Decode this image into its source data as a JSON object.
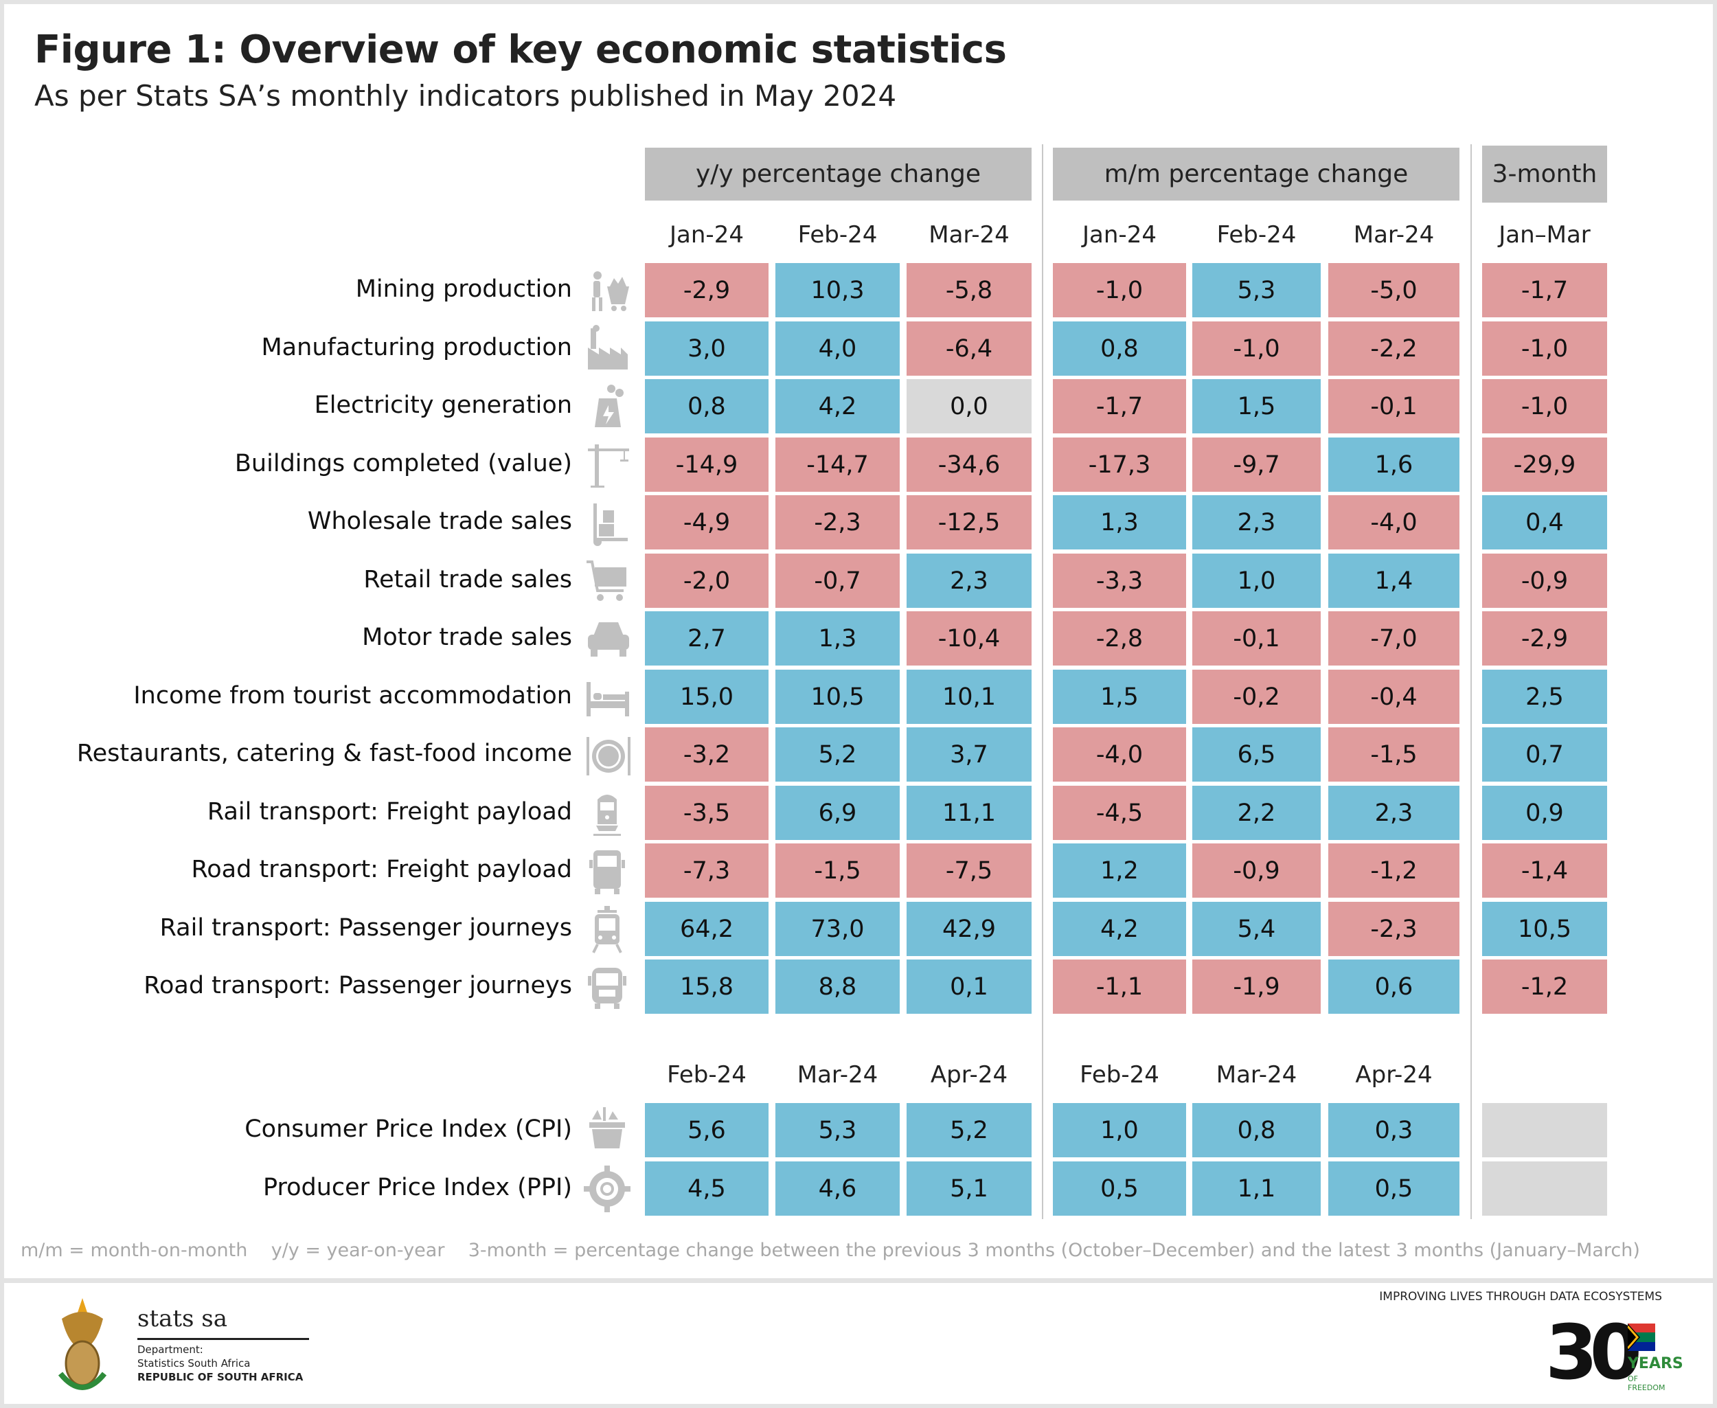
{
  "title": "Figure 1: Overview of key economic statistics",
  "subtitle": "As per Stats SA’s monthly indicators published in May 2024",
  "groups": {
    "yy": "y/y percentage change",
    "mm": "m/m percentage change",
    "three_month": "3-month"
  },
  "colors": {
    "positive": "#76bfd8",
    "negative": "#e09c9d",
    "zero": "#d9d9d9",
    "header": "#bfbfbf"
  },
  "chart_data": {
    "type": "table",
    "title": "Figure 1: Overview of key economic statistics",
    "subtitle": "As per Stats SA’s monthly indicators published in May 2024",
    "section1": {
      "yy_columns": [
        "Jan-24",
        "Feb-24",
        "Mar-24"
      ],
      "mm_columns": [
        "Jan-24",
        "Feb-24",
        "Mar-24"
      ],
      "three_month_column": "Jan–Mar",
      "rows": [
        {
          "label": "Mining production",
          "icon": "miner-cart-icon",
          "yy": [
            "-2,9",
            "10,3",
            "-5,8"
          ],
          "mm": [
            "-1,0",
            "5,3",
            "-5,0"
          ],
          "three_month": "-1,7"
        },
        {
          "label": "Manufacturing production",
          "icon": "factory-icon",
          "yy": [
            "3,0",
            "4,0",
            "-6,4"
          ],
          "mm": [
            "0,8",
            "-1,0",
            "-2,2"
          ],
          "three_month": "-1,0"
        },
        {
          "label": "Electricity generation",
          "icon": "power-plant-icon",
          "yy": [
            "0,8",
            "4,2",
            "0,0"
          ],
          "mm": [
            "-1,7",
            "1,5",
            "-0,1"
          ],
          "three_month": "-1,0"
        },
        {
          "label": "Buildings completed (value)",
          "icon": "crane-icon",
          "yy": [
            "-14,9",
            "-14,7",
            "-34,6"
          ],
          "mm": [
            "-17,3",
            "-9,7",
            "1,6"
          ],
          "three_month": "-29,9"
        },
        {
          "label": "Wholesale trade sales",
          "icon": "hand-truck-icon",
          "yy": [
            "-4,9",
            "-2,3",
            "-12,5"
          ],
          "mm": [
            "1,3",
            "2,3",
            "-4,0"
          ],
          "three_month": "0,4"
        },
        {
          "label": "Retail trade sales",
          "icon": "shopping-cart-icon",
          "yy": [
            "-2,0",
            "-0,7",
            "2,3"
          ],
          "mm": [
            "-3,3",
            "1,0",
            "1,4"
          ],
          "three_month": "-0,9"
        },
        {
          "label": "Motor trade sales",
          "icon": "car-icon",
          "yy": [
            "2,7",
            "1,3",
            "-10,4"
          ],
          "mm": [
            "-2,8",
            "-0,1",
            "-7,0"
          ],
          "three_month": "-2,9"
        },
        {
          "label": "Income from tourist accommodation",
          "icon": "bed-icon",
          "yy": [
            "15,0",
            "10,5",
            "10,1"
          ],
          "mm": [
            "1,5",
            "-0,2",
            "-0,4"
          ],
          "three_month": "2,5"
        },
        {
          "label": "Restaurants, catering & fast-food income",
          "icon": "plate-cutlery-icon",
          "yy": [
            "-3,2",
            "5,2",
            "3,7"
          ],
          "mm": [
            "-4,0",
            "6,5",
            "-1,5"
          ],
          "three_month": "0,7"
        },
        {
          "label": "Rail transport: Freight payload",
          "icon": "locomotive-icon",
          "yy": [
            "-3,5",
            "6,9",
            "11,1"
          ],
          "mm": [
            "-4,5",
            "2,2",
            "2,3"
          ],
          "three_month": "0,9"
        },
        {
          "label": "Road transport: Freight payload",
          "icon": "truck-icon",
          "yy": [
            "-7,3",
            "-1,5",
            "-7,5"
          ],
          "mm": [
            "1,2",
            "-0,9",
            "-1,2"
          ],
          "three_month": "-1,4"
        },
        {
          "label": "Rail transport: Passenger journeys",
          "icon": "tram-icon",
          "yy": [
            "64,2",
            "73,0",
            "42,9"
          ],
          "mm": [
            "4,2",
            "5,4",
            "-2,3"
          ],
          "three_month": "10,5"
        },
        {
          "label": "Road transport: Passenger journeys",
          "icon": "bus-icon",
          "yy": [
            "15,8",
            "8,8",
            "0,1"
          ],
          "mm": [
            "-1,1",
            "-1,9",
            "0,6"
          ],
          "three_month": "-1,2"
        }
      ]
    },
    "section2": {
      "yy_columns": [
        "Feb-24",
        "Mar-24",
        "Apr-24"
      ],
      "mm_columns": [
        "Feb-24",
        "Mar-24",
        "Apr-24"
      ],
      "rows": [
        {
          "label": "Consumer Price Index (CPI)",
          "icon": "grocery-basket-icon",
          "yy": [
            "5,6",
            "5,3",
            "5,2"
          ],
          "mm": [
            "1,0",
            "0,8",
            "0,3"
          ],
          "three_month": ""
        },
        {
          "label": "Producer Price Index (PPI)",
          "icon": "gear-icon",
          "yy": [
            "4,5",
            "4,6",
            "5,1"
          ],
          "mm": [
            "0,5",
            "1,1",
            "0,5"
          ],
          "three_month": ""
        }
      ]
    }
  },
  "footnote": "m/m = month-on-month    y/y = year-on-year    3-month = percentage change between the previous 3 months (October–December) and the latest 3 months (January–March)",
  "footer": {
    "org_name": "stats sa",
    "dept_line1": "Department:",
    "dept_line2": "Statistics South Africa",
    "dept_line3": "REPUBLIC OF SOUTH AFRICA",
    "tagline": "IMPROVING LIVES THROUGH DATA ECOSYSTEMS",
    "anniversary_number": "30",
    "anniversary_text1": "YEARS",
    "anniversary_text2": "OF FREEDOM"
  }
}
